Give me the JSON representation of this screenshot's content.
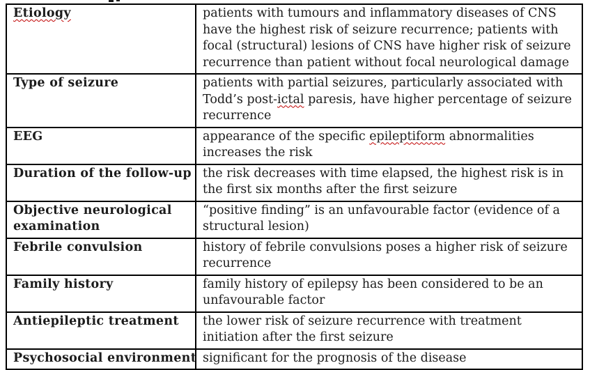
{
  "colors": {
    "text": "#1c1c1c",
    "border": "#000000",
    "spellcheck_underline": "#C00000",
    "background": "#ffffff"
  },
  "table": {
    "rows": [
      {
        "label_lines": [
          [
            {
              "text": "Etiology",
              "misspelled": true
            }
          ]
        ],
        "desc_lines": [
          [
            {
              "text": "patients with tumours and inflammatory diseases of CNS",
              "misspelled": false
            }
          ],
          [
            {
              "text": "have the highest risk of seizure recurrence; patients with",
              "misspelled": false
            }
          ],
          [
            {
              "text": "focal (structural) lesions of CNS have higher risk of seizure",
              "misspelled": false
            }
          ],
          [
            {
              "text": "recurrence than patient without focal neurological damage",
              "misspelled": false
            }
          ]
        ]
      },
      {
        "label_lines": [
          [
            {
              "text": "Type of seizure",
              "misspelled": false
            }
          ]
        ],
        "desc_lines": [
          [
            {
              "text": "patients with partial seizures, particularly associated with",
              "misspelled": false
            }
          ],
          [
            {
              "text": "Todd’s post-",
              "misspelled": false
            },
            {
              "text": "ictal",
              "misspelled": true
            },
            {
              "text": " paresis, have higher percentage of seizure",
              "misspelled": false
            }
          ],
          [
            {
              "text": "recurrence",
              "misspelled": false
            }
          ]
        ]
      },
      {
        "label_lines": [
          [
            {
              "text": "EEG",
              "misspelled": false
            }
          ]
        ],
        "desc_lines": [
          [
            {
              "text": "appearance of the specific ",
              "misspelled": false
            },
            {
              "text": "epileptiform",
              "misspelled": true
            },
            {
              "text": " abnormalities",
              "misspelled": false
            }
          ],
          [
            {
              "text": "increases the risk",
              "misspelled": false
            }
          ]
        ]
      },
      {
        "label_lines": [
          [
            {
              "text": "Duration of the follow-up",
              "misspelled": false
            }
          ]
        ],
        "desc_lines": [
          [
            {
              "text": "the risk decreases with time elapsed, the highest risk is in",
              "misspelled": false
            }
          ],
          [
            {
              "text": "the first six months after the first seizure",
              "misspelled": false
            }
          ]
        ]
      },
      {
        "label_lines": [
          [
            {
              "text": "Objective neurological",
              "misspelled": false
            }
          ],
          [
            {
              "text": "examination",
              "misspelled": false
            }
          ]
        ],
        "desc_lines": [
          [
            {
              "text": "“positive finding” is an unfavourable factor (evidence of a",
              "misspelled": false
            }
          ],
          [
            {
              "text": "structural lesion)",
              "misspelled": false
            }
          ]
        ]
      },
      {
        "label_lines": [
          [
            {
              "text": "Febrile convulsion",
              "misspelled": false
            }
          ]
        ],
        "desc_lines": [
          [
            {
              "text": "history of febrile convulsions poses a higher risk of seizure",
              "misspelled": false
            }
          ],
          [
            {
              "text": "recurrence",
              "misspelled": false
            }
          ]
        ]
      },
      {
        "label_lines": [
          [
            {
              "text": "Family history",
              "misspelled": false
            }
          ]
        ],
        "desc_lines": [
          [
            {
              "text": "family history of epilepsy has been considered to be an",
              "misspelled": false
            }
          ],
          [
            {
              "text": "unfavourable factor",
              "misspelled": false
            }
          ]
        ]
      },
      {
        "label_lines": [
          [
            {
              "text": "Antiepileptic treatment",
              "misspelled": false
            }
          ]
        ],
        "desc_lines": [
          [
            {
              "text": "the lower risk of seizure recurrence with treatment",
              "misspelled": false
            }
          ],
          [
            {
              "text": "initiation after the first seizure",
              "misspelled": false
            }
          ]
        ]
      },
      {
        "label_lines": [
          [
            {
              "text": "Psychosocial environment",
              "misspelled": false
            }
          ]
        ],
        "desc_lines": [
          [
            {
              "text": "significant for the prognosis of the disease",
              "misspelled": false
            }
          ]
        ]
      }
    ]
  }
}
